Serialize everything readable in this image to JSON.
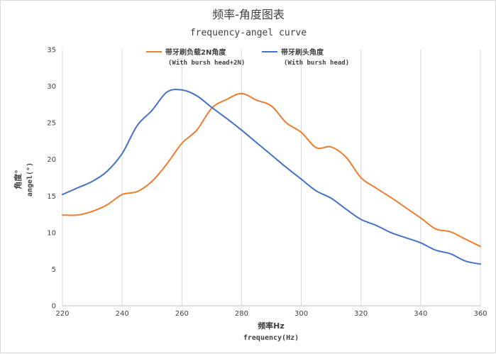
{
  "chart_data": {
    "type": "line",
    "title": "频率-角度图表",
    "subtitle": "frequency-angel curve",
    "xlabel": "频率Hz",
    "xlabel_en": "frequency(Hz)",
    "ylabel": "角度°",
    "ylabel_en": "angel(°)",
    "xlim": [
      220,
      360
    ],
    "ylim": [
      0,
      35
    ],
    "x_ticks": [
      220,
      240,
      260,
      280,
      300,
      320,
      340,
      360
    ],
    "y_ticks": [
      0,
      5,
      10,
      15,
      20,
      25,
      30,
      35
    ],
    "grid": "vertical",
    "legend_position": "top",
    "series": [
      {
        "name": "带牙刷负载2N角度",
        "name_sub": "(With bursh head+2N)",
        "color": "#ED7D31",
        "x": [
          220,
          225,
          230,
          235,
          240,
          245,
          250,
          255,
          260,
          265,
          270,
          275,
          280,
          285,
          290,
          295,
          300,
          305,
          310,
          315,
          320,
          325,
          330,
          335,
          340,
          345,
          350,
          355,
          360
        ],
        "y": [
          12.4,
          12.4,
          12.9,
          13.8,
          15.2,
          15.6,
          17.0,
          19.4,
          22.2,
          24.0,
          27.0,
          28.2,
          29.0,
          28.1,
          27.3,
          25.0,
          23.7,
          21.6,
          21.7,
          20.3,
          17.5,
          16.1,
          14.8,
          13.4,
          12.0,
          10.5,
          10.1,
          9.1,
          8.1
        ]
      },
      {
        "name": "带牙刷头角度",
        "name_sub": "(With bursh head)",
        "color": "#4472C4",
        "x": [
          220,
          225,
          230,
          235,
          240,
          245,
          250,
          255,
          260,
          265,
          270,
          275,
          280,
          285,
          290,
          295,
          300,
          305,
          310,
          315,
          320,
          325,
          330,
          335,
          340,
          345,
          350,
          355,
          360
        ],
        "y": [
          15.2,
          16.1,
          17.0,
          18.4,
          20.8,
          24.6,
          26.7,
          29.2,
          29.5,
          28.7,
          27.1,
          25.6,
          24.0,
          22.3,
          20.6,
          18.9,
          17.3,
          15.7,
          14.7,
          13.2,
          11.8,
          11.0,
          10.0,
          9.3,
          8.6,
          7.6,
          7.1,
          6.1,
          5.7
        ]
      }
    ]
  }
}
